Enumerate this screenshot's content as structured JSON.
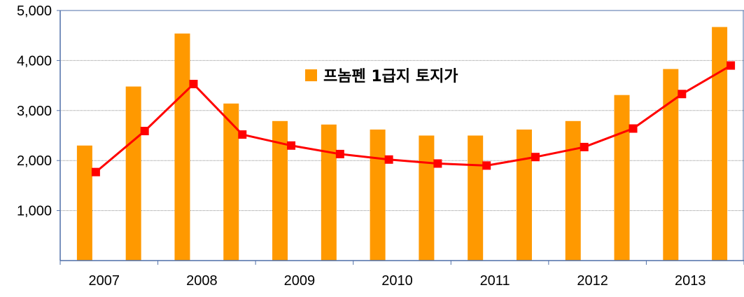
{
  "chart_data": {
    "type": "bar+line",
    "title": "",
    "xlabel": "",
    "ylabel": "",
    "ylim": [
      0,
      5000
    ],
    "yticks": [
      "1,000",
      "2,000",
      "3,000",
      "4,000",
      "5,000"
    ],
    "ytick_values": [
      1000,
      2000,
      3000,
      4000,
      5000
    ],
    "x_labels": [
      "2007",
      "2008",
      "2009",
      "2010",
      "2011",
      "2012",
      "2013"
    ],
    "grid": true,
    "legend_position": "top-center",
    "series": [
      {
        "name": "프놈펜 1급지 토지가",
        "type": "bar",
        "color": "#FF9900",
        "values": [
          2300,
          3480,
          4540,
          3140,
          2790,
          2720,
          2620,
          2500,
          2500,
          2620,
          2790,
          3310,
          3830,
          4670
        ]
      },
      {
        "type": "line",
        "line_color": "#FF0000",
        "marker_color": "#FF0000",
        "values": [
          1770,
          2590,
          3530,
          2520,
          2300,
          2130,
          2020,
          1940,
          1900,
          2070,
          2270,
          2640,
          3330,
          3900
        ]
      }
    ]
  }
}
